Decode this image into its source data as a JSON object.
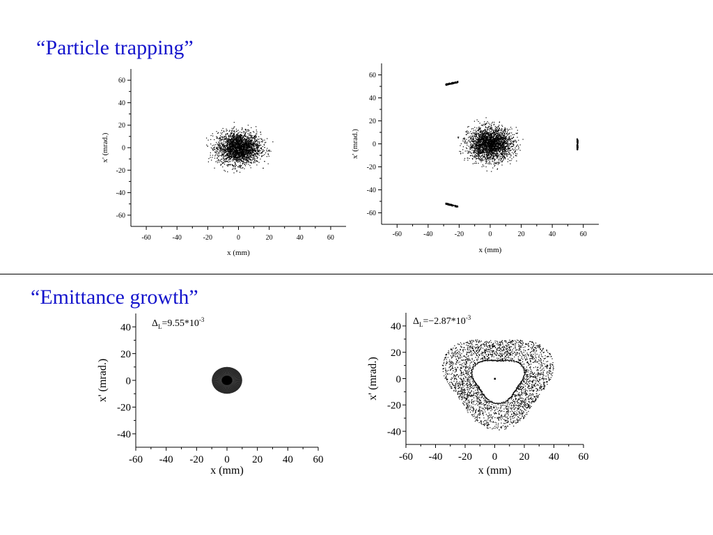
{
  "headings": {
    "particle_trapping": "“Particle trapping”",
    "emittance_growth": "“Emittance growth”"
  },
  "chart_data": [
    {
      "type": "scatter",
      "title": "",
      "xlabel": "x (mm)",
      "ylabel": "x' (mrad.)",
      "xlim": [
        -70,
        70
      ],
      "ylim": [
        -70,
        70
      ],
      "xticks": [
        -60,
        -40,
        -20,
        0,
        20,
        40,
        60
      ],
      "yticks": [
        -60,
        -40,
        -20,
        0,
        20,
        40,
        60
      ],
      "annotation": "",
      "series": [
        {
          "kind": "gaussian-cloud",
          "center": [
            0,
            0
          ],
          "sigma": [
            7,
            7
          ],
          "count": 2500
        }
      ]
    },
    {
      "type": "scatter",
      "title": "",
      "xlabel": "x (mm)",
      "ylabel": "x' (mrad.)",
      "xlim": [
        -70,
        70
      ],
      "ylim": [
        -70,
        70
      ],
      "xticks": [
        -60,
        -40,
        -20,
        0,
        20,
        40,
        60
      ],
      "yticks": [
        -60,
        -40,
        -20,
        0,
        20,
        40,
        60
      ],
      "annotation": "",
      "series": [
        {
          "kind": "gaussian-cloud",
          "center": [
            0,
            0
          ],
          "sigma": [
            7,
            7
          ],
          "count": 2500
        },
        {
          "kind": "island",
          "center": [
            -25,
            53
          ],
          "extent": [
            4,
            2
          ],
          "count": 120
        },
        {
          "kind": "island",
          "center": [
            -25,
            -53
          ],
          "extent": [
            4,
            2
          ],
          "count": 120
        },
        {
          "kind": "island",
          "center": [
            56,
            0
          ],
          "extent": [
            1,
            5
          ],
          "count": 100
        }
      ]
    },
    {
      "type": "scatter",
      "title": "",
      "xlabel": "x (mm)",
      "ylabel": "x' (mrad.)",
      "xlim": [
        -60,
        60
      ],
      "ylim": [
        -50,
        50
      ],
      "xticks": [
        -60,
        -40,
        -20,
        0,
        20,
        40,
        60
      ],
      "yticks": [
        -40,
        -20,
        0,
        20,
        40
      ],
      "annotation": "Δ_L=9.55*10^-3",
      "series": [
        {
          "kind": "filled-disc",
          "center": [
            0,
            0
          ],
          "radius": [
            10,
            10
          ]
        }
      ]
    },
    {
      "type": "scatter",
      "title": "",
      "xlabel": "x (mm)",
      "ylabel": "x' (mrad.)",
      "xlim": [
        -60,
        60
      ],
      "ylim": [
        -50,
        50
      ],
      "xticks": [
        -60,
        -40,
        -20,
        0,
        20,
        40,
        60
      ],
      "yticks": [
        -40,
        -20,
        0,
        20,
        40
      ],
      "annotation": "Δ_L=−2.87*10^-3",
      "series": [
        {
          "kind": "triangular-ring",
          "center": [
            2,
            0
          ],
          "inner_radius": 16,
          "outer_radius": 34,
          "count": 2400
        },
        {
          "kind": "center-point",
          "center": [
            0,
            0
          ]
        }
      ]
    }
  ]
}
